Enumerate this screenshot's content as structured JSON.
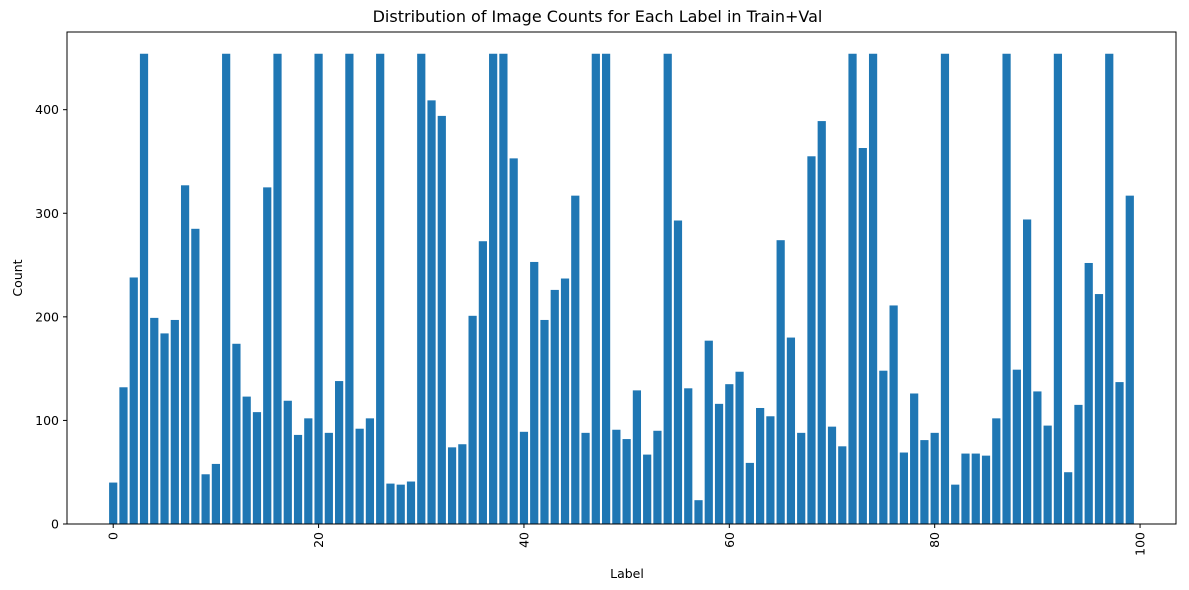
{
  "chart_data": {
    "type": "bar",
    "title": "Distribution of Image Counts for Each Label in Train+Val",
    "xlabel": "Label",
    "ylabel": "Count",
    "xlim": [
      -4.5,
      103.5
    ],
    "ylim": [
      0,
      475
    ],
    "xticks": [
      0,
      20,
      40,
      60,
      80,
      100
    ],
    "yticks": [
      0,
      100,
      200,
      300,
      400
    ],
    "xtick_rotation": 90,
    "grid": false,
    "legend": "none",
    "bar_color": "#1f77b4",
    "x": [
      0,
      1,
      2,
      3,
      4,
      5,
      6,
      7,
      8,
      9,
      10,
      11,
      12,
      13,
      14,
      15,
      16,
      17,
      18,
      19,
      20,
      21,
      22,
      23,
      24,
      25,
      26,
      27,
      28,
      29,
      30,
      31,
      32,
      33,
      34,
      35,
      36,
      37,
      38,
      39,
      40,
      41,
      42,
      43,
      44,
      45,
      46,
      47,
      48,
      49,
      50,
      51,
      52,
      53,
      54,
      55,
      56,
      57,
      58,
      59,
      60,
      61,
      62,
      63,
      64,
      65,
      66,
      67,
      68,
      69,
      70,
      71,
      72,
      73,
      74,
      75,
      76,
      77,
      78,
      79,
      80,
      81,
      82,
      83,
      84,
      85,
      86,
      87,
      88,
      89,
      90,
      91,
      92,
      93,
      94,
      95,
      96,
      97,
      98,
      99
    ],
    "values": [
      40,
      132,
      238,
      454,
      199,
      184,
      197,
      327,
      285,
      48,
      58,
      454,
      174,
      123,
      108,
      325,
      454,
      119,
      86,
      102,
      454,
      88,
      138,
      454,
      92,
      102,
      454,
      39,
      38,
      41,
      454,
      409,
      394,
      74,
      77,
      201,
      273,
      454,
      454,
      353,
      89,
      253,
      197,
      226,
      237,
      317,
      88,
      454,
      454,
      91,
      82,
      129,
      67,
      90,
      454,
      293,
      131,
      23,
      177,
      116,
      135,
      147,
      59,
      112,
      104,
      274,
      180,
      88,
      355,
      389,
      94,
      75,
      454,
      363,
      454,
      148,
      211,
      69,
      126,
      81,
      88,
      454,
      38,
      68,
      68,
      66,
      102,
      454,
      149,
      294,
      128,
      95,
      454,
      50,
      115,
      252,
      222,
      454,
      137,
      317
    ]
  }
}
